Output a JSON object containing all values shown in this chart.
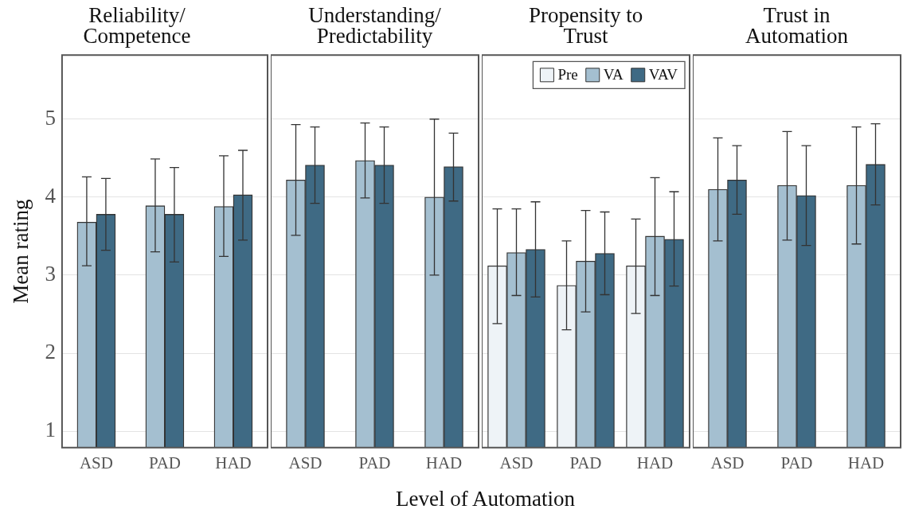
{
  "chart_data": [
    {
      "type": "bar",
      "title": "Reliability/\nCompetence",
      "ylabel": "Mean rating",
      "categories": [
        "ASD",
        "PAD",
        "HAD"
      ],
      "ylim": [
        0.79,
        5.82
      ],
      "yticks": [
        1,
        2,
        3,
        4,
        5
      ],
      "grid": "y",
      "legend": false,
      "series": [
        {
          "color": "#a4bfd0",
          "values": [
            3.68,
            3.89,
            3.88
          ],
          "errors": [
            [
              3.12,
              4.26
            ],
            [
              3.3,
              4.49
            ],
            [
              3.24,
              4.53
            ]
          ]
        },
        {
          "color": "#3f6a84",
          "values": [
            3.78,
            3.78,
            4.03
          ],
          "errors": [
            [
              3.32,
              4.24
            ],
            [
              3.17,
              4.38
            ],
            [
              3.45,
              4.6
            ]
          ]
        }
      ]
    },
    {
      "type": "bar",
      "title": "Understanding/\nPredictability",
      "xlabel": "Level of Automation",
      "categories": [
        "ASD",
        "PAD",
        "HAD"
      ],
      "ylim": [
        0.79,
        5.82
      ],
      "yticks": [
        1,
        2,
        3,
        4,
        5
      ],
      "grid": "y",
      "legend": false,
      "tick_labels": "x",
      "series": [
        {
          "color": "#a4bfd0",
          "values": [
            4.22,
            4.47,
            4.0
          ],
          "errors": [
            [
              3.51,
              4.93
            ],
            [
              3.99,
              4.95
            ],
            [
              3.0,
              5.0
            ]
          ]
        },
        {
          "color": "#3f6a84",
          "values": [
            4.41,
            4.41,
            4.39
          ],
          "errors": [
            [
              3.92,
              4.9
            ],
            [
              3.92,
              4.9
            ],
            [
              3.95,
              4.82
            ]
          ]
        }
      ]
    },
    {
      "type": "bar",
      "title": "Propensity to\nTrust",
      "categories": [
        "ASD",
        "PAD",
        "HAD"
      ],
      "ylim": [
        0.79,
        5.82
      ],
      "yticks": [
        1,
        2,
        3,
        4,
        5
      ],
      "grid": "y",
      "legend": "top right",
      "tick_labels": "x",
      "series": [
        {
          "name": "Pre",
          "color": "#eef3f7",
          "values": [
            3.12,
            2.87,
            3.12
          ],
          "errors": [
            [
              2.38,
              3.85
            ],
            [
              2.3,
              3.44
            ],
            [
              2.51,
              3.72
            ]
          ]
        },
        {
          "name": "VA",
          "color": "#a4bfd0",
          "values": [
            3.29,
            3.18,
            3.5
          ],
          "errors": [
            [
              2.74,
              3.85
            ],
            [
              2.53,
              3.83
            ],
            [
              2.74,
              4.25
            ]
          ]
        },
        {
          "name": "VAV",
          "color": "#3f6a84",
          "values": [
            3.33,
            3.28,
            3.46
          ],
          "errors": [
            [
              2.72,
              3.94
            ],
            [
              2.75,
              3.81
            ],
            [
              2.86,
              4.07
            ]
          ]
        }
      ]
    },
    {
      "type": "bar",
      "title": "Trust in\nAutomation",
      "categories": [
        "ASD",
        "PAD",
        "HAD"
      ],
      "ylim": [
        0.79,
        5.82
      ],
      "yticks": [
        1,
        2,
        3,
        4,
        5
      ],
      "grid": "y",
      "legend": false,
      "tick_labels": "x",
      "series": [
        {
          "color": "#a4bfd0",
          "values": [
            4.1,
            4.15,
            4.15
          ],
          "errors": [
            [
              3.44,
              4.76
            ],
            [
              3.45,
              4.84
            ],
            [
              3.4,
              4.9
            ]
          ]
        },
        {
          "color": "#3f6a84",
          "values": [
            4.22,
            4.02,
            4.42
          ],
          "errors": [
            [
              3.78,
              4.66
            ],
            [
              3.38,
              4.66
            ],
            [
              3.9,
              4.94
            ]
          ]
        }
      ]
    }
  ]
}
